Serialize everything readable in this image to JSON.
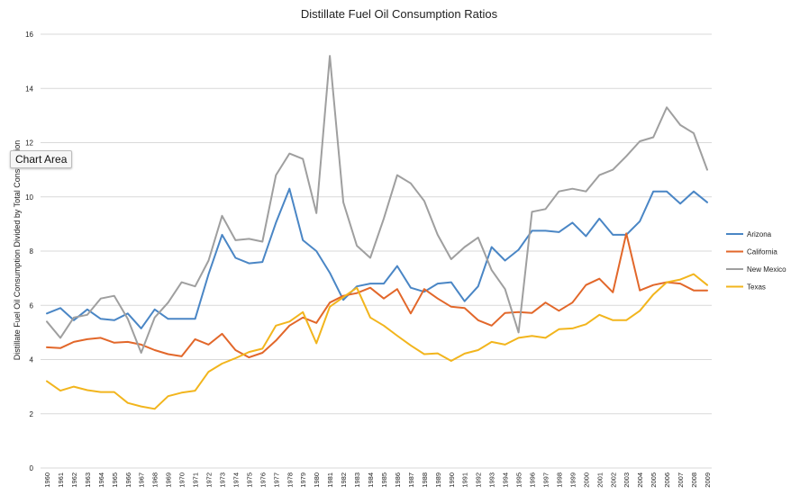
{
  "chart_data": {
    "type": "line",
    "title": "Distillate Fuel Oil Consumption Ratios",
    "ylabel": "Distillate Fuel Oil Consumption Divided by Total Consumption",
    "xlabel": "",
    "ylim": [
      0,
      16
    ],
    "yticks": [
      "0",
      "2",
      "4",
      "6",
      "8",
      "10",
      "12",
      "14",
      "16"
    ],
    "grid": true,
    "legend_position": "right",
    "categories": [
      "1960",
      "1961",
      "1962",
      "1963",
      "1964",
      "1965",
      "1966",
      "1967",
      "1968",
      "1969",
      "1970",
      "1971",
      "1972",
      "1973",
      "1974",
      "1975",
      "1976",
      "1977",
      "1978",
      "1979",
      "1980",
      "1981",
      "1982",
      "1983",
      "1984",
      "1985",
      "1986",
      "1987",
      "1988",
      "1989",
      "1990",
      "1991",
      "1992",
      "1993",
      "1994",
      "1995",
      "1996",
      "1997",
      "1998",
      "1999",
      "2000",
      "2001",
      "2002",
      "2003",
      "2004",
      "2005",
      "2006",
      "2007",
      "2008",
      "2009"
    ],
    "series": [
      {
        "name": "Arizona",
        "color": "#4a86c5",
        "values": [
          5.7,
          5.9,
          5.45,
          5.85,
          5.5,
          5.45,
          5.7,
          5.15,
          5.85,
          5.5,
          5.5,
          5.5,
          7.15,
          8.6,
          7.75,
          7.55,
          7.6,
          9.05,
          10.3,
          8.4,
          8.0,
          7.2,
          6.2,
          6.7,
          6.8,
          6.8,
          7.45,
          6.65,
          6.5,
          6.8,
          6.85,
          6.15,
          6.7,
          8.15,
          7.65,
          8.05,
          8.75,
          8.75,
          8.7,
          9.05,
          8.55,
          9.2,
          8.6,
          8.6,
          9.1,
          10.2,
          10.2,
          9.75,
          10.2,
          9.8
        ]
      },
      {
        "name": "California",
        "color": "#e2672a",
        "values": [
          4.45,
          4.42,
          4.65,
          4.75,
          4.8,
          4.62,
          4.65,
          4.55,
          4.35,
          4.2,
          4.12,
          4.75,
          4.55,
          4.95,
          4.35,
          4.08,
          4.25,
          4.7,
          5.25,
          5.55,
          5.35,
          6.1,
          6.35,
          6.45,
          6.65,
          6.25,
          6.6,
          5.7,
          6.6,
          6.25,
          5.95,
          5.9,
          5.45,
          5.25,
          5.72,
          5.75,
          5.72,
          6.1,
          5.8,
          6.1,
          6.75,
          6.98,
          6.48,
          8.65,
          6.55,
          6.75,
          6.85,
          6.8,
          6.55,
          6.55
        ]
      },
      {
        "name": "New Mexico",
        "color": "#9f9f9f",
        "values": [
          5.4,
          4.8,
          5.55,
          5.65,
          6.25,
          6.35,
          5.5,
          4.25,
          5.55,
          6.1,
          6.85,
          6.7,
          7.65,
          9.3,
          8.4,
          8.45,
          8.35,
          10.8,
          11.6,
          11.4,
          9.4,
          15.2,
          9.8,
          8.2,
          7.75,
          9.2,
          10.8,
          10.5,
          9.85,
          8.6,
          7.7,
          8.15,
          8.5,
          7.3,
          6.6,
          5.0,
          9.45,
          9.55,
          10.2,
          10.3,
          10.2,
          10.8,
          11.0,
          11.5,
          12.05,
          12.2,
          13.3,
          12.65,
          12.35,
          11.0
        ]
      },
      {
        "name": "Texas",
        "color": "#f2b51d",
        "values": [
          3.2,
          2.85,
          3.0,
          2.87,
          2.8,
          2.8,
          2.4,
          2.27,
          2.18,
          2.65,
          2.78,
          2.85,
          3.55,
          3.85,
          4.05,
          4.28,
          4.4,
          5.25,
          5.4,
          5.75,
          4.6,
          5.95,
          6.3,
          6.65,
          5.55,
          5.25,
          4.88,
          4.52,
          4.2,
          4.23,
          3.95,
          4.22,
          4.35,
          4.65,
          4.55,
          4.8,
          4.87,
          4.8,
          5.12,
          5.15,
          5.3,
          5.65,
          5.45,
          5.45,
          5.8,
          6.4,
          6.85,
          6.95,
          7.15,
          6.75
        ]
      }
    ]
  },
  "tooltip": {
    "text": "Chart Area"
  }
}
